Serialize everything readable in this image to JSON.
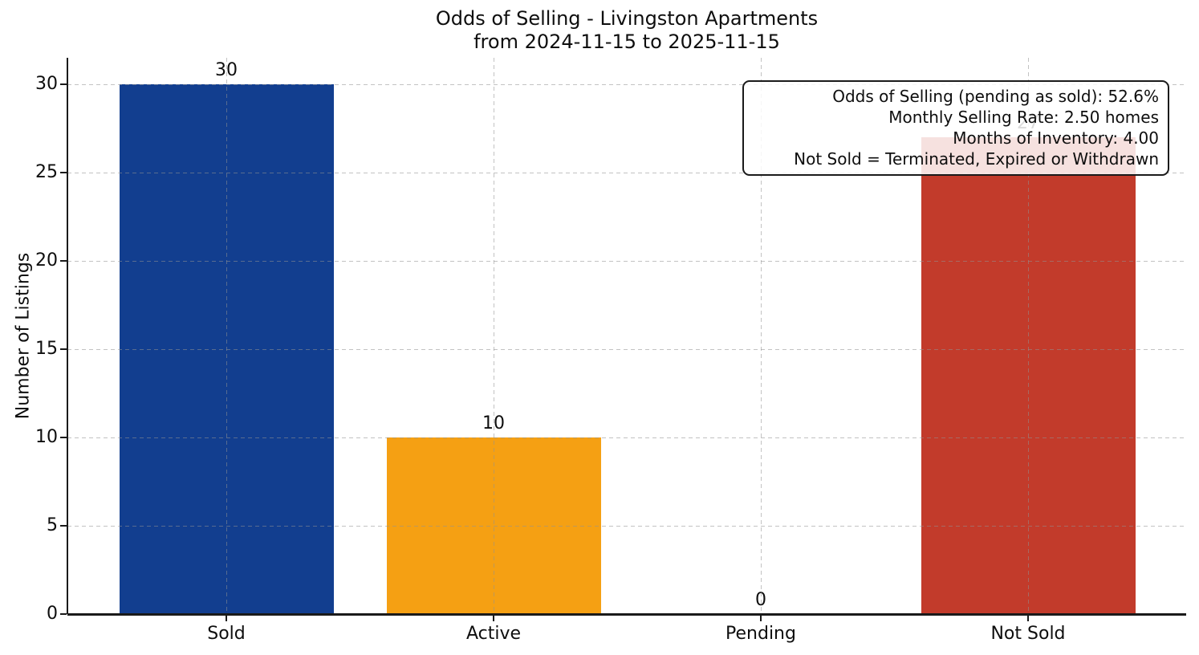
{
  "chart_data": {
    "type": "bar",
    "title": "Odds of Selling - Livingston Apartments",
    "subtitle": "from 2024-11-15 to 2025-11-15",
    "categories": [
      "Sold",
      "Active",
      "Pending",
      "Not Sold"
    ],
    "values": [
      30,
      10,
      0,
      27
    ],
    "bar_labels": [
      "30",
      "10",
      "0",
      "27"
    ],
    "bar_colors": [
      "#123e8f",
      "#f5a013",
      "#bbbbbb",
      "#c23b2b"
    ],
    "xlabel": "",
    "ylabel": "Number of Listings",
    "yticks": [
      "0",
      "5",
      "10",
      "15",
      "20",
      "25",
      "30"
    ],
    "ylim": [
      0,
      31.5
    ],
    "grid": "dashed horizontal at y ticks and dashed vertical at category centers, drawn over bars",
    "legend_position": "none",
    "annotation": {
      "lines": [
        "Odds of Selling (pending as sold): 52.6%",
        "Monthly Selling Rate: 2.50 homes",
        "Months of Inventory: 4.00",
        "Not Sold = Terminated, Expired or Withdrawn"
      ]
    }
  }
}
